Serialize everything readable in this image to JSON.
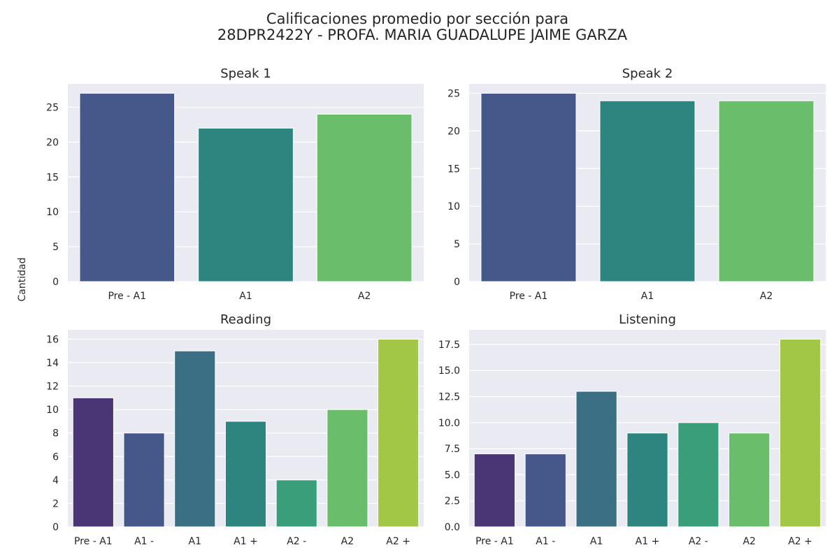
{
  "figure": {
    "title_line1": "Calificaciones promedio por sección para",
    "title_line2": "28DPR2422Y - PROFA. MARIA GUADALUPE JAIME GARZA",
    "ylabel": "Cantidad"
  },
  "chart_data": [
    {
      "type": "bar",
      "title": "Speak 1",
      "categories": [
        "Pre - A1",
        "A1",
        "A2"
      ],
      "values": [
        27,
        22,
        24
      ],
      "colors": [
        "#46578a",
        "#2e847e",
        "#6abd6b"
      ],
      "ylim": [
        0,
        28.35
      ],
      "yticks": [
        0,
        5,
        10,
        15,
        20,
        25
      ],
      "ytick_labels": [
        "0",
        "5",
        "10",
        "15",
        "20",
        "25"
      ],
      "xlabel": "",
      "ylabel": "",
      "grid": true
    },
    {
      "type": "bar",
      "title": "Speak 2",
      "categories": [
        "Pre - A1",
        "A1",
        "A2"
      ],
      "values": [
        25,
        24,
        24
      ],
      "colors": [
        "#46578a",
        "#2e847e",
        "#6abd6b"
      ],
      "ylim": [
        0,
        26.25
      ],
      "yticks": [
        0,
        5,
        10,
        15,
        20,
        25
      ],
      "ytick_labels": [
        "0",
        "5",
        "10",
        "15",
        "20",
        "25"
      ],
      "xlabel": "",
      "ylabel": "",
      "grid": true
    },
    {
      "type": "bar",
      "title": "Reading",
      "categories": [
        "Pre - A1",
        "A1 -",
        "A1",
        "A1 +",
        "A2 -",
        "A2",
        "A2 +"
      ],
      "values": [
        11,
        8,
        15,
        9,
        4,
        10,
        16
      ],
      "colors": [
        "#4a3674",
        "#46578a",
        "#3a6f84",
        "#2e847e",
        "#3a9e7b",
        "#6abd6b",
        "#a2c646"
      ],
      "ylim": [
        0,
        16.8
      ],
      "yticks": [
        0,
        2,
        4,
        6,
        8,
        10,
        12,
        14,
        16
      ],
      "ytick_labels": [
        "0",
        "2",
        "4",
        "6",
        "8",
        "10",
        "12",
        "14",
        "16"
      ],
      "xlabel": "",
      "ylabel": "",
      "grid": true
    },
    {
      "type": "bar",
      "title": "Listening",
      "categories": [
        "Pre - A1",
        "A1 -",
        "A1",
        "A1 +",
        "A2 -",
        "A2",
        "A2 +"
      ],
      "values": [
        7,
        7,
        13,
        9,
        10,
        9,
        18
      ],
      "colors": [
        "#4a3674",
        "#46578a",
        "#3a6f84",
        "#2e847e",
        "#3a9e7b",
        "#6abd6b",
        "#a2c646"
      ],
      "ylim": [
        0,
        18.9
      ],
      "yticks": [
        0,
        2.5,
        5,
        7.5,
        10,
        12.5,
        15,
        17.5
      ],
      "ytick_labels": [
        "0.0",
        "2.5",
        "5.0",
        "7.5",
        "10.0",
        "12.5",
        "15.0",
        "17.5"
      ],
      "xlabel": "",
      "ylabel": "",
      "grid": true
    }
  ]
}
